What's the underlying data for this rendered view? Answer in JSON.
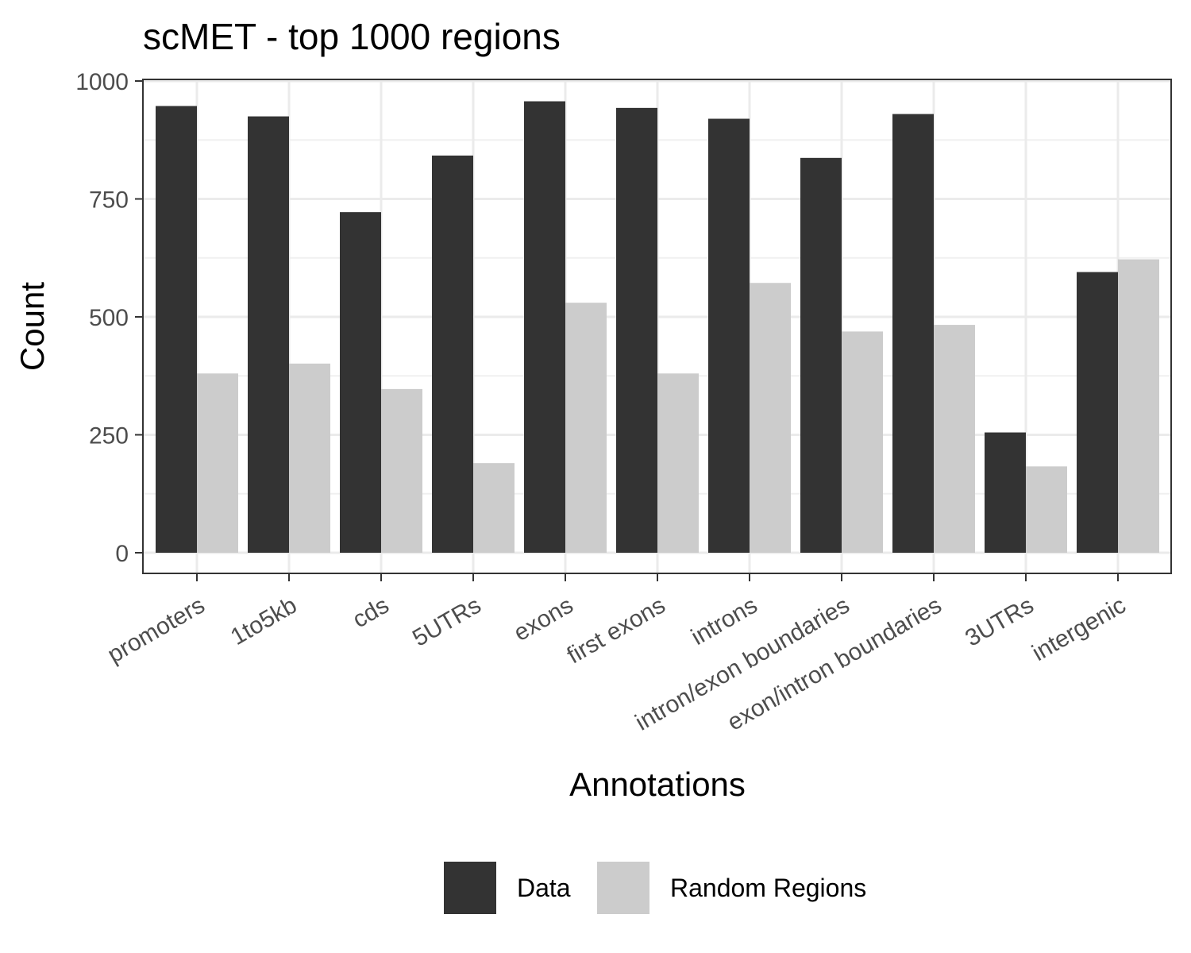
{
  "chart_data": {
    "type": "bar",
    "title": "scMET - top 1000 regions",
    "xlabel": "Annotations",
    "ylabel": "Count",
    "categories": [
      "promoters",
      "1to5kb",
      "cds",
      "5UTRs",
      "exons",
      "first exons",
      "introns",
      "intron/exon boundaries",
      "exon/intron boundaries",
      "3UTRs",
      "intergenic"
    ],
    "series": [
      {
        "name": "Data",
        "color": "#333333",
        "values": [
          947,
          925,
          722,
          842,
          957,
          943,
          920,
          837,
          930,
          255,
          595
        ]
      },
      {
        "name": "Random Regions",
        "color": "#cccccc",
        "values": [
          380,
          401,
          347,
          190,
          530,
          380,
          572,
          469,
          483,
          183,
          622
        ]
      }
    ],
    "ylim": [
      0,
      1000
    ],
    "yticks": [
      0,
      250,
      500,
      750,
      1000
    ],
    "grid": true,
    "legend_position": "bottom"
  }
}
